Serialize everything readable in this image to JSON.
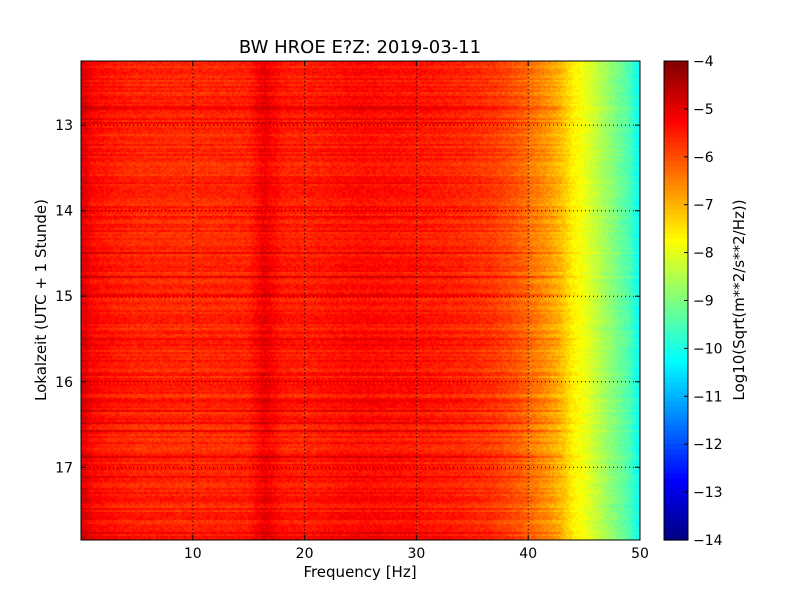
{
  "chart_data": {
    "type": "heatmap",
    "title": "BW HROE E?Z: 2019-03-11",
    "xlabel": "Frequency [Hz]",
    "ylabel": "Lokalzeit (UTC + 1 Stunde)",
    "xlim": [
      0,
      50
    ],
    "ylim": [
      17.85,
      12.25
    ],
    "y_inverted": true,
    "grid": true,
    "grid_style": "dotted",
    "x_ticks": [
      10,
      20,
      30,
      40,
      50
    ],
    "x_tick_labels": [
      "10",
      "20",
      "30",
      "40",
      "50"
    ],
    "y_ticks": [
      13,
      14,
      15,
      16,
      17
    ],
    "y_tick_labels": [
      "13",
      "14",
      "15",
      "16",
      "17"
    ],
    "colormap": "jet",
    "colorbar": {
      "label": "Log10(Sqrt(m**2/s**2/Hz))",
      "range": [
        -14,
        -4
      ],
      "ticks": [
        -4,
        -5,
        -6,
        -7,
        -8,
        -9,
        -10,
        -11,
        -12,
        -13,
        -14
      ],
      "tick_labels": [
        "−4",
        "−5",
        "−6",
        "−7",
        "−8",
        "−9",
        "−10",
        "−11",
        "−12",
        "−13",
        "−14"
      ]
    },
    "frequency_profile": {
      "frequency_hz": [
        0,
        0.5,
        1,
        3,
        5,
        10,
        15,
        16.5,
        18,
        20,
        25,
        30,
        34,
        37,
        39,
        40,
        41,
        42,
        43,
        44,
        45,
        46,
        47,
        48,
        49,
        50
      ],
      "log10_amplitude": [
        -5.0,
        -5.0,
        -5.3,
        -5.5,
        -5.6,
        -5.65,
        -5.6,
        -5.1,
        -5.5,
        -5.55,
        -5.35,
        -5.45,
        -5.6,
        -5.8,
        -6.1,
        -6.3,
        -6.55,
        -6.8,
        -7.1,
        -7.6,
        -7.9,
        -8.3,
        -8.7,
        -9.1,
        -9.5,
        -10.2
      ]
    },
    "banded_rows_note": ""
  }
}
